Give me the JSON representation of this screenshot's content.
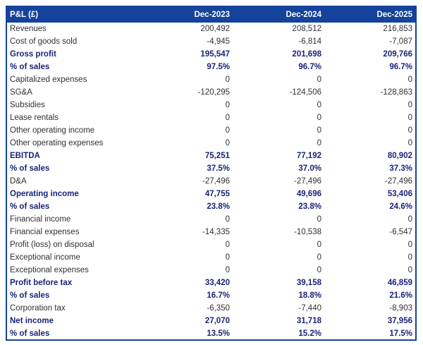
{
  "colors": {
    "header_bg": "#15429B",
    "header_text": "#FFFFFF",
    "border": "#15429B",
    "bold_row_text": "#1A2377",
    "body_text": "#303030",
    "body_bg": "#FFFFFF"
  },
  "table": {
    "title": "P&L (£)"
  },
  "chart_data": {
    "type": "table",
    "title": "P&L (£)",
    "columns": [
      "Dec-2023",
      "Dec-2024",
      "Dec-2025"
    ],
    "rows": [
      {
        "label": "Revenues",
        "values": [
          "200,492",
          "208,512",
          "216,853"
        ],
        "bold": false
      },
      {
        "label": "Cost of goods sold",
        "values": [
          "-4,945",
          "-6,814",
          "-7,087"
        ],
        "bold": false
      },
      {
        "label": "Gross profit",
        "values": [
          "195,547",
          "201,698",
          "209,766"
        ],
        "bold": true
      },
      {
        "label": "% of sales",
        "values": [
          "97.5%",
          "96.7%",
          "96.7%"
        ],
        "bold": true
      },
      {
        "label": "Capitalized expenses",
        "values": [
          "0",
          "0",
          "0"
        ],
        "bold": false
      },
      {
        "label": "SG&A",
        "values": [
          "-120,295",
          "-124,506",
          "-128,863"
        ],
        "bold": false
      },
      {
        "label": "Subsidies",
        "values": [
          "0",
          "0",
          "0"
        ],
        "bold": false
      },
      {
        "label": "Lease rentals",
        "values": [
          "0",
          "0",
          "0"
        ],
        "bold": false
      },
      {
        "label": "Other operating income",
        "values": [
          "0",
          "0",
          "0"
        ],
        "bold": false
      },
      {
        "label": "Other operating expenses",
        "values": [
          "0",
          "0",
          "0"
        ],
        "bold": false
      },
      {
        "label": "EBITDA",
        "values": [
          "75,251",
          "77,192",
          "80,902"
        ],
        "bold": true
      },
      {
        "label": "% of sales",
        "values": [
          "37.5%",
          "37.0%",
          "37.3%"
        ],
        "bold": true
      },
      {
        "label": "D&A",
        "values": [
          "-27,496",
          "-27,496",
          "-27,496"
        ],
        "bold": false
      },
      {
        "label": "Operating income",
        "values": [
          "47,755",
          "49,696",
          "53,406"
        ],
        "bold": true
      },
      {
        "label": "% of sales",
        "values": [
          "23.8%",
          "23.8%",
          "24.6%"
        ],
        "bold": true
      },
      {
        "label": "Financial income",
        "values": [
          "0",
          "0",
          "0"
        ],
        "bold": false
      },
      {
        "label": "Financial expenses",
        "values": [
          "-14,335",
          "-10,538",
          "-6,547"
        ],
        "bold": false
      },
      {
        "label": "Profit (loss) on disposal",
        "values": [
          "0",
          "0",
          "0"
        ],
        "bold": false
      },
      {
        "label": "Exceptional income",
        "values": [
          "0",
          "0",
          "0"
        ],
        "bold": false
      },
      {
        "label": "Exceptional expenses",
        "values": [
          "0",
          "0",
          "0"
        ],
        "bold": false
      },
      {
        "label": "Profit before tax",
        "values": [
          "33,420",
          "39,158",
          "46,859"
        ],
        "bold": true
      },
      {
        "label": "% of sales",
        "values": [
          "16.7%",
          "18.8%",
          "21.6%"
        ],
        "bold": true
      },
      {
        "label": "Corporation tax",
        "values": [
          "-6,350",
          "-7,440",
          "-8,903"
        ],
        "bold": false
      },
      {
        "label": "Net income",
        "values": [
          "27,070",
          "31,718",
          "37,956"
        ],
        "bold": true
      },
      {
        "label": "% of sales",
        "values": [
          "13.5%",
          "15.2%",
          "17.5%"
        ],
        "bold": true
      }
    ]
  }
}
